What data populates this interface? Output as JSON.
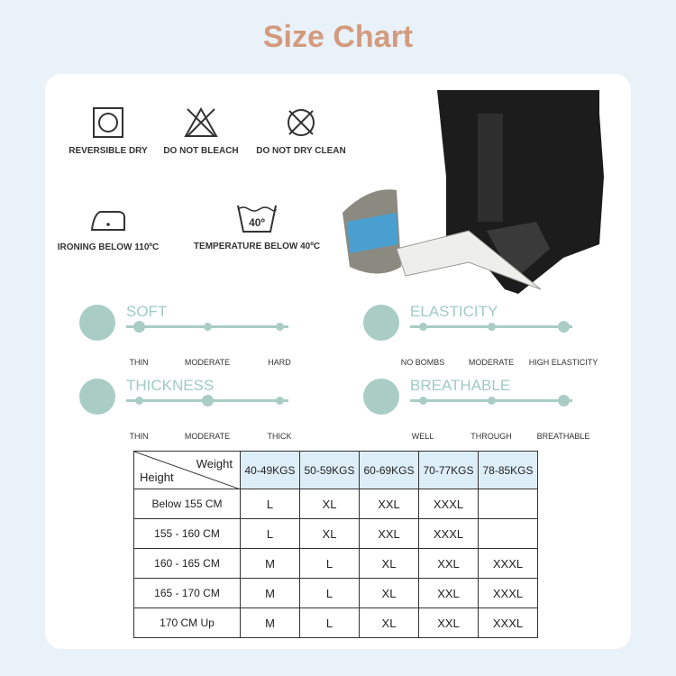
{
  "title": "Size Chart",
  "care": [
    {
      "icon": "reversible-dry-icon",
      "label": "REVERSIBLE DRY"
    },
    {
      "icon": "do-not-bleach-icon",
      "label": "DO NOT BLEACH"
    },
    {
      "icon": "do-not-dry-clean-icon",
      "label": "DO NOT DRY CLEAN"
    },
    {
      "icon": "iron-icon",
      "label": "IRONING BELOW 110ºC"
    },
    {
      "icon": "wash-40-icon",
      "label": "TEMPERATURE BELOW 40ºC",
      "badge": "40º"
    }
  ],
  "features": [
    {
      "name": "SOFT",
      "icon": "feather-icon",
      "levels": [
        "THIN",
        "MODERATE",
        "HARD"
      ],
      "selected": 0
    },
    {
      "name": "ELASTICITY",
      "icon": "stretch-fabric-icon",
      "levels": [
        "NO BOMBS",
        "MODERATE",
        "HIGH ELASTICITY"
      ],
      "selected": 2
    },
    {
      "name": "THICKNESS",
      "icon": "layers-icon",
      "levels": [
        "THIN",
        "MODERATE",
        "THICK"
      ],
      "selected": 1
    },
    {
      "name": "BREATHABLE",
      "icon": "breathable-fabric-icon",
      "levels": [
        "WELL",
        "THROUGH",
        "BREATHABLE"
      ],
      "selected": 2
    }
  ],
  "table": {
    "corner_top": "Weight",
    "corner_bottom": "Height",
    "columns": [
      "40-49KGS",
      "50-59KGS",
      "60-69KGS",
      "70-77KGS",
      "78-85KGS"
    ],
    "rows": [
      [
        "Below 155 CM",
        "L",
        "XL",
        "XXL",
        "XXXL",
        ""
      ],
      [
        "155 - 160 CM",
        "L",
        "XL",
        "XXL",
        "XXXL",
        ""
      ],
      [
        "160 - 165 CM",
        "M",
        "L",
        "XL",
        "XXL",
        "XXXL"
      ],
      [
        "165 - 170 CM",
        "M",
        "L",
        "XL",
        "XXL",
        "XXXL"
      ],
      [
        "170 CM Up",
        "M",
        "L",
        "XL",
        "XXL",
        "XXXL"
      ]
    ]
  },
  "colors": {
    "title": "#d49a7e",
    "accent": "#a9cdc5",
    "header_bg": "#deeef9",
    "background": "#e9f2f9"
  }
}
